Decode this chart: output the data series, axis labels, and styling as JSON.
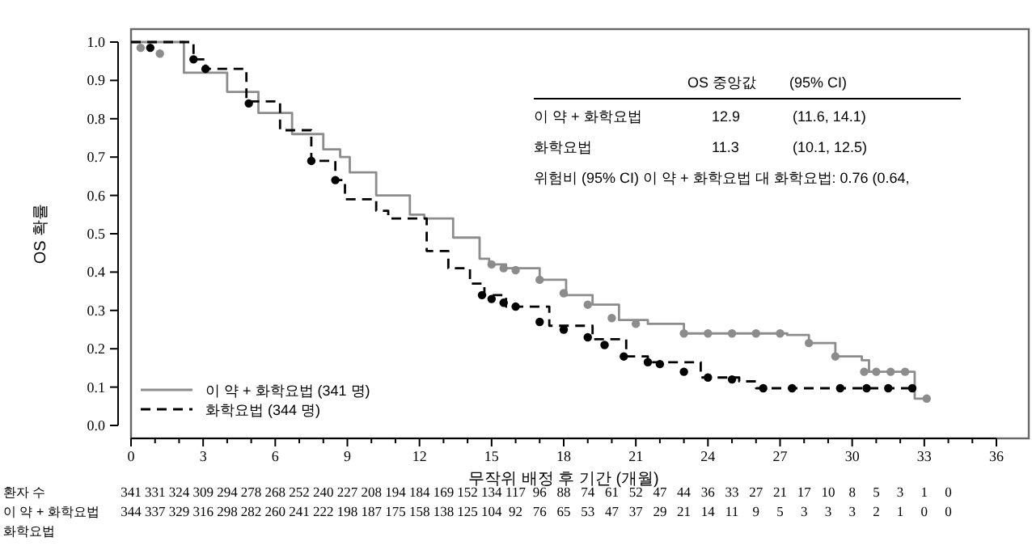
{
  "chart_data": {
    "type": "step",
    "xlabel": "무작위 배정 후 기간 (개월)",
    "ylabel": "OS 확률",
    "xlim": [
      0,
      36
    ],
    "xticks": [
      0,
      {
        "value": 1,
        "label": null
      },
      {
        "value": 2,
        "label": null
      },
      3,
      {
        "value": 4,
        "label": null
      },
      {
        "value": 5,
        "label": null
      },
      6,
      {
        "value": 7,
        "label": null
      },
      {
        "value": 8,
        "label": null
      },
      9,
      {
        "value": 10,
        "label": null
      },
      {
        "value": 11,
        "label": null
      },
      12,
      {
        "value": 13,
        "label": null
      },
      {
        "value": 14,
        "label": null
      },
      15,
      {
        "value": 16,
        "label": null
      },
      {
        "value": 17,
        "label": null
      },
      18,
      {
        "value": 19,
        "label": null
      },
      {
        "value": 20,
        "label": null
      },
      21,
      {
        "value": 22,
        "label": null
      },
      {
        "value": 23,
        "label": null
      },
      24,
      {
        "value": 25,
        "label": null
      },
      {
        "value": 26,
        "label": null
      },
      27,
      {
        "value": 28,
        "label": null
      },
      {
        "value": 29,
        "label": null
      },
      30,
      {
        "value": 31,
        "label": null
      },
      {
        "value": 32,
        "label": null
      },
      33,
      {
        "value": 34,
        "label": null
      },
      {
        "value": 35,
        "label": null
      },
      36
    ],
    "ylim": [
      0,
      1
    ],
    "yticks": [
      {
        "value": 0,
        "label": "0.0"
      },
      0.1,
      0.2,
      0.3,
      0.4,
      0.5,
      0.6,
      0.7,
      0.8,
      0.9,
      {
        "value": 1,
        "label": "1.0"
      }
    ],
    "legend": "bottom left",
    "grid": false,
    "series": [
      {
        "name": "이 약 + 화학요법 (341 명)",
        "color": "#8c8c8c",
        "line_style": "solid",
        "marker": "none",
        "x": [
          0,
          2.2,
          4,
          5.3,
          6.7,
          8,
          8.7,
          9.1,
          10.2,
          11.6,
          12.2,
          13.4,
          14.5,
          14.9,
          15.6,
          17,
          18.1,
          19.2,
          20.3,
          21.5,
          23,
          27.3,
          28.2,
          29.3,
          30.4,
          30.7,
          32.6,
          33.1
        ],
        "values": [
          1.0,
          0.92,
          0.87,
          0.815,
          0.76,
          0.72,
          0.7,
          0.66,
          0.6,
          0.55,
          0.54,
          0.49,
          0.435,
          0.42,
          0.41,
          0.38,
          0.34,
          0.315,
          0.275,
          0.265,
          0.24,
          0.236,
          0.215,
          0.18,
          0.17,
          0.14,
          0.07,
          0.07
        ]
      },
      {
        "name": "화학요법 (344 명)",
        "color": "#000000",
        "line_style": "dashed",
        "marker": "none",
        "x": [
          0,
          2.6,
          3.1,
          4.8,
          6.2,
          7.5,
          8.5,
          8.9,
          10.2,
          10.7,
          12.3,
          13.2,
          14.1,
          14.7,
          15.6,
          17.4,
          19.2,
          20.6,
          21.5,
          23.7,
          25.3,
          26,
          32.5
        ],
        "values": [
          1.0,
          0.955,
          0.93,
          0.845,
          0.77,
          0.69,
          0.64,
          0.59,
          0.56,
          0.54,
          0.455,
          0.41,
          0.37,
          0.34,
          0.31,
          0.26,
          0.225,
          0.18,
          0.165,
          0.125,
          0.115,
          0.097,
          0.097
        ]
      },
      {
        "type": "scatter",
        "color": "#8c8c8c",
        "marker": "circle",
        "x": [
          0.4,
          1.2,
          15,
          15.5,
          16,
          17,
          18,
          19,
          20,
          21,
          23,
          24,
          25,
          26,
          27,
          28.2,
          29.3,
          30.5,
          31,
          31.6,
          32.2,
          33.1
        ],
        "values": [
          0.985,
          0.97,
          0.42,
          0.41,
          0.405,
          0.38,
          0.345,
          0.315,
          0.28,
          0.265,
          0.24,
          0.24,
          0.24,
          0.24,
          0.24,
          0.215,
          0.18,
          0.14,
          0.14,
          0.14,
          0.14,
          0.07
        ]
      },
      {
        "type": "scatter",
        "color": "#000000",
        "marker": "circle",
        "x": [
          0.8,
          2.6,
          3.1,
          4.9,
          7.5,
          8.5,
          14.6,
          15,
          15.5,
          16,
          17,
          18,
          19,
          19.7,
          20.5,
          21.5,
          22,
          23,
          24,
          25,
          26.3,
          27.5,
          29.5,
          30.6,
          31.5,
          32.5
        ],
        "values": [
          0.985,
          0.955,
          0.93,
          0.84,
          0.69,
          0.64,
          0.34,
          0.33,
          0.32,
          0.31,
          0.27,
          0.25,
          0.23,
          0.21,
          0.18,
          0.165,
          0.16,
          0.14,
          0.125,
          0.12,
          0.097,
          0.097,
          0.097,
          0.097,
          0.097,
          0.097
        ]
      }
    ],
    "annotations": [
      "OS 중앙값",
      "(95% CI)",
      "이 약 + 화학요법",
      "12.9",
      "(11.6, 14.1)",
      "화학요법",
      "11.3",
      "(10.1, 12.5)",
      "위험비 (95% CI) 이 약 + 화학요법 대 화학요법: 0.76 (0.64,",
      "환자 수",
      "이 약 + 화학요법",
      "화학요법",
      "341 331 324 309 294 278 268 252 240 227 208 194 184 169 152 134 117 96 88 74 61 52 47 44 36 33 27 21 17 10 8 5 3 1 0",
      "344 337 329 316 298 282 260 241 222 198 187 175 158 138 125 104 92 76 65 53 47 37 29 21 14 11 9 5 3 3 3 2 1 0 0"
    ]
  }
}
